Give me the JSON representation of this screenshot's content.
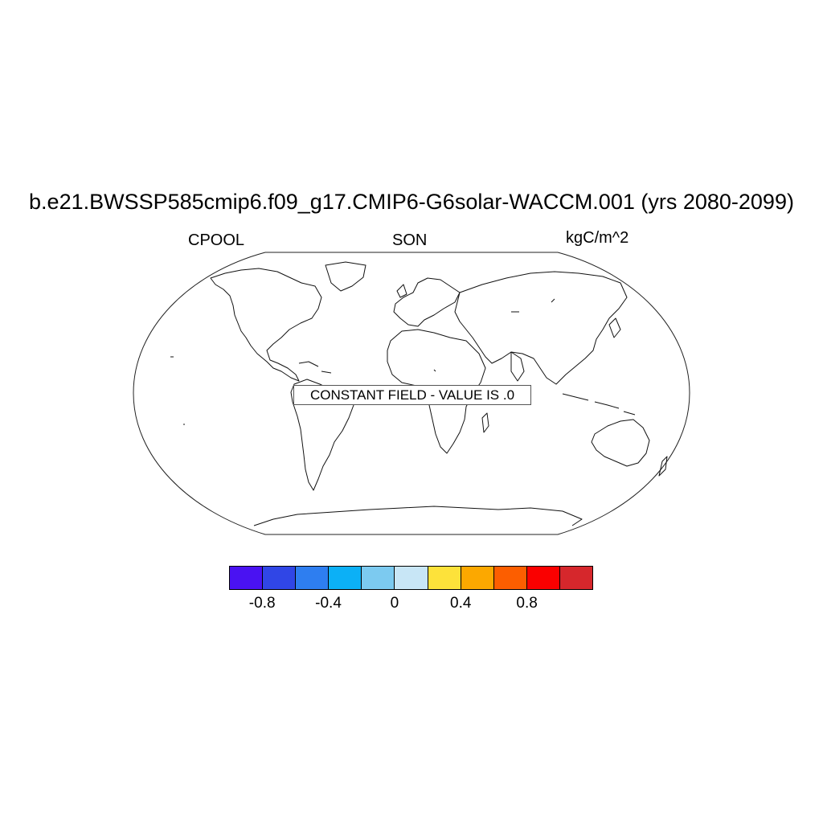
{
  "title": "b.e21.BWSSP585cmip6.f09_g17.CMIP6-G6solar-WACCM.001 (yrs 2080-2099)",
  "left_label": "CPOOL",
  "center_label": "SON",
  "right_label": "kgC/m^2",
  "notice": "CONSTANT FIELD - VALUE IS .0",
  "colorbar": {
    "colors": [
      "#4a12f2",
      "#3046e6",
      "#2e7ef0",
      "#0cb0f6",
      "#7ccaf0",
      "#c8e6f6",
      "#fde23a",
      "#fca800",
      "#fc5e00",
      "#fa0000",
      "#d6272c"
    ],
    "tick_labels": [
      {
        "text": "-0.8",
        "value": -0.8
      },
      {
        "text": "-0.4",
        "value": -0.4
      },
      {
        "text": "0",
        "value": 0
      },
      {
        "text": "0.4",
        "value": 0.4
      },
      {
        "text": "0.8",
        "value": 0.8
      }
    ]
  }
}
